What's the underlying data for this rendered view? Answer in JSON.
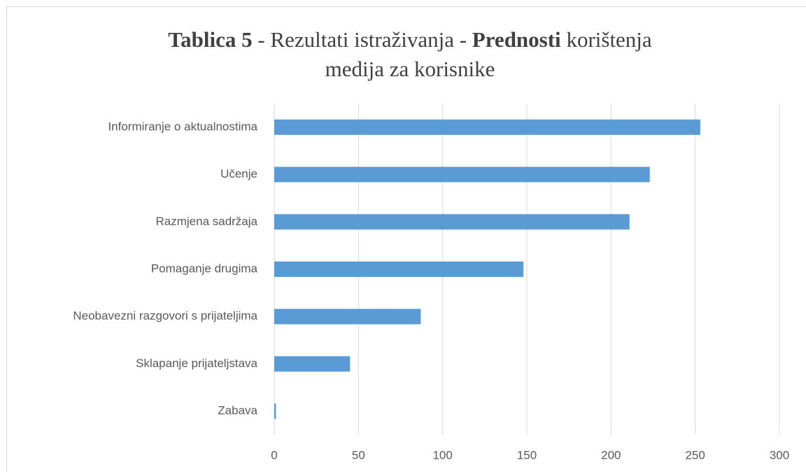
{
  "chart_data": {
    "type": "bar",
    "orientation": "horizontal",
    "title": [
      [
        {
          "text": "Tablica 5",
          "bold": true
        },
        {
          "text": " - Rezultati istraživanja - ",
          "bold": false
        },
        {
          "text": "Prednosti",
          "bold": true
        },
        {
          "text": " korištenja",
          "bold": false
        }
      ],
      [
        {
          "text": "medija za korisnike",
          "bold": false
        }
      ]
    ],
    "categories": [
      "Informiranje o aktualnostima",
      "Učenje",
      "Razmjena sadržaja",
      "Pomaganje drugima",
      "Neobavezni razgovori s prijateljima",
      "Sklapanje prijateljstava",
      "Zabava"
    ],
    "values": [
      253,
      223,
      211,
      148,
      87,
      45,
      1
    ],
    "color": "#5b9bd5",
    "xlim": [
      0,
      300
    ],
    "xticks": [
      0,
      50,
      100,
      150,
      200,
      250,
      300
    ],
    "grid": true
  }
}
